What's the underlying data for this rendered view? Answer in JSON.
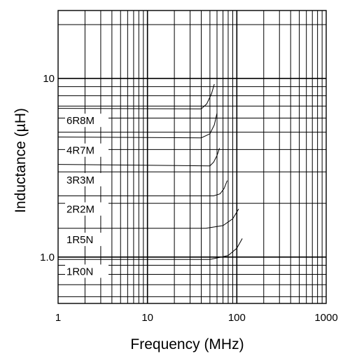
{
  "chart_data": {
    "type": "line",
    "xlabel": "Frequency (MHz)",
    "ylabel": "Inductance (µH)",
    "x_scale": "log",
    "y_scale": "log",
    "xlim": [
      1,
      1000
    ],
    "ylim": [
      0.55,
      24
    ],
    "grid": true,
    "legend": "none",
    "x_ticks": [
      {
        "value": 1,
        "label": "1"
      },
      {
        "value": 10,
        "label": "10"
      },
      {
        "value": 100,
        "label": "100"
      },
      {
        "value": 1000,
        "label": "1000"
      }
    ],
    "y_ticks": [
      {
        "value": 1,
        "label": "1.0"
      },
      {
        "value": 10,
        "label": "10"
      }
    ],
    "series": [
      {
        "name": "1R0N",
        "x": [
          1,
          50,
          80,
          100,
          115
        ],
        "y": [
          0.97,
          0.97,
          1.02,
          1.12,
          1.27
        ],
        "label_value": 0.83
      },
      {
        "name": "1R5N",
        "x": [
          1,
          45,
          70,
          90,
          105
        ],
        "y": [
          1.45,
          1.45,
          1.5,
          1.64,
          1.86
        ],
        "label_value": 1.25
      },
      {
        "name": "2R2M",
        "x": [
          1,
          55,
          65,
          72,
          78
        ],
        "y": [
          2.2,
          2.2,
          2.26,
          2.42,
          2.68
        ],
        "label_value": 1.85
      },
      {
        "name": "3R3M",
        "x": [
          1,
          50,
          55,
          60,
          64
        ],
        "y": [
          3.3,
          3.24,
          3.4,
          3.7,
          4.07
        ],
        "label_value": 2.7
      },
      {
        "name": "4R7M",
        "x": [
          1,
          40,
          50,
          56,
          60
        ],
        "y": [
          4.7,
          4.65,
          4.9,
          5.5,
          6.4
        ],
        "label_value": 3.95
      },
      {
        "name": "6R8M",
        "x": [
          1,
          40,
          46,
          52,
          56
        ],
        "y": [
          6.8,
          6.75,
          7.2,
          8.2,
          9.3
        ],
        "label_value": 5.8
      }
    ]
  }
}
